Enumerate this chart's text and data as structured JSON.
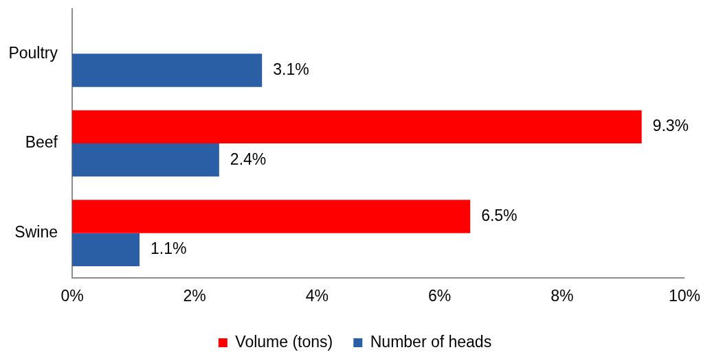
{
  "chart_data": {
    "type": "bar",
    "orientation": "horizontal",
    "categories": [
      "Poultry",
      "Beef",
      "Swine"
    ],
    "series": [
      {
        "name": "Volume (tons)",
        "color": "#ff0000",
        "values": [
          null,
          9.3,
          6.5
        ],
        "value_labels": [
          null,
          "9.3%",
          "6.5%"
        ]
      },
      {
        "name": "Number of heads",
        "color": "#2a5fa5",
        "values": [
          3.1,
          2.4,
          1.1
        ],
        "value_labels": [
          "3.1%",
          "2.4%",
          "1.1%"
        ]
      }
    ],
    "xlim": [
      0,
      10
    ],
    "xticks": [
      {
        "value": 0,
        "label": "0%"
      },
      {
        "value": 2,
        "label": "2%"
      },
      {
        "value": 4,
        "label": "4%"
      },
      {
        "value": 6,
        "label": "6%"
      },
      {
        "value": 8,
        "label": "8%"
      },
      {
        "value": 10,
        "label": "10%"
      }
    ],
    "legend": "bottom"
  }
}
